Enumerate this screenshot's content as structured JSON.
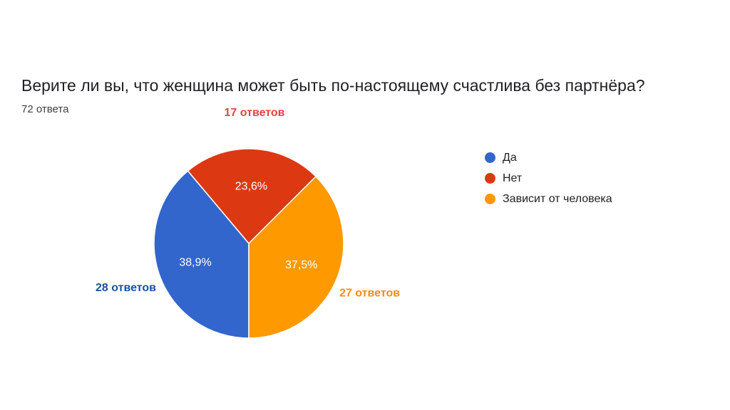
{
  "question": {
    "title": "Верите ли вы, что женщина может быть по-настоящему счастлива без партнёра?",
    "response_count": "72 ответа"
  },
  "chart_data": {
    "type": "pie",
    "categories": [
      "Да",
      "Нет",
      "Зависит от человека"
    ],
    "values": [
      28,
      17,
      27
    ],
    "percent_labels": [
      "38,9%",
      "23,6%",
      "37,5%"
    ],
    "count_labels": [
      "28 ответов",
      "17 ответов",
      "27 ответов"
    ],
    "colors": [
      "#3366cc",
      "#dc3912",
      "#ff9900"
    ],
    "count_label_colors": [
      "#1c4fa0",
      "#e8413d",
      "#f28d1a"
    ],
    "legend_position": "right",
    "start_angle_deg": 90,
    "direction": "clockwise"
  }
}
